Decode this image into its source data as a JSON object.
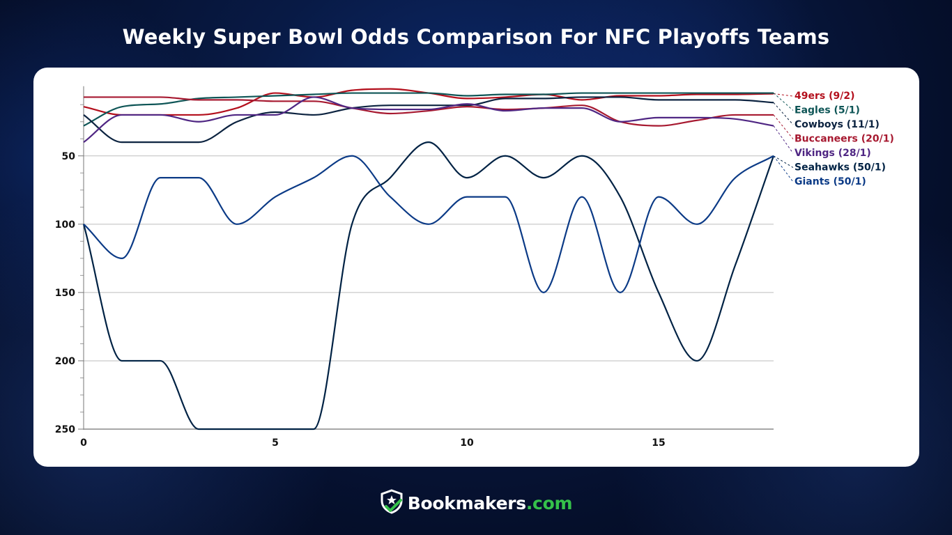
{
  "title": "Weekly Super Bowl Odds Comparison For NFC Playoffs Teams",
  "brand": {
    "name": "Bookmakers",
    "tld": ".com",
    "icon": "shield-star-check-icon",
    "accent": "#35c14a"
  },
  "chart_data": {
    "type": "line",
    "title": "Weekly Super Bowl Odds Comparison For NFC Playoffs Teams",
    "xlabel": "",
    "ylabel": "",
    "x": [
      0,
      1,
      2,
      3,
      4,
      5,
      6,
      7,
      8,
      9,
      10,
      11,
      12,
      13,
      14,
      15,
      16,
      17,
      18
    ],
    "xlim": [
      0,
      18
    ],
    "xticks": [
      0,
      5,
      10,
      15
    ],
    "ylim": [
      0,
      250
    ],
    "y_inverted": true,
    "yticks": [
      50,
      100,
      150,
      200,
      250
    ],
    "y_minor_step": 12.5,
    "grid": true,
    "legend_placement": "right",
    "series": [
      {
        "name": "49ers",
        "label": "49ers (9/2)",
        "color": "#b30f1c",
        "values": [
          14,
          20,
          20,
          20,
          15,
          4,
          7,
          2,
          1,
          4,
          8,
          7,
          5,
          9,
          6,
          6,
          5,
          5,
          4.5
        ]
      },
      {
        "name": "Eagles",
        "label": "Eagles (5/1)",
        "color": "#0e5556",
        "values": [
          28,
          14,
          12,
          8,
          7,
          6,
          5,
          4,
          4,
          4,
          6,
          5,
          5,
          4,
          4,
          4,
          4,
          4,
          4
        ]
      },
      {
        "name": "Cowboys",
        "label": "Cowboys (11/1)",
        "color": "#0c2340",
        "values": [
          20,
          40,
          40,
          40,
          25,
          18,
          20,
          15,
          13,
          13,
          13,
          8,
          8,
          7,
          7,
          9,
          9,
          9,
          11
        ]
      },
      {
        "name": "Buccaneers",
        "label": "Buccaneers (20/1)",
        "color": "#a71930",
        "values": [
          7,
          7,
          7,
          9,
          9,
          10,
          10,
          15,
          19,
          17,
          14,
          16,
          15,
          13,
          25,
          28,
          24,
          20,
          20
        ]
      },
      {
        "name": "Vikings",
        "label": "Vikings (28/1)",
        "color": "#4f2683",
        "values": [
          40,
          20,
          20,
          25,
          20,
          20,
          7,
          15,
          16,
          16,
          12,
          17,
          15,
          15,
          25,
          22,
          22,
          23,
          28
        ]
      },
      {
        "name": "Seahawks",
        "label": "Seahawks (50/1)",
        "color": "#002244",
        "values": [
          100,
          200,
          200,
          250,
          250,
          250,
          250,
          100,
          66,
          40,
          66,
          50,
          66,
          50,
          80,
          150,
          200,
          130,
          50
        ]
      },
      {
        "name": "Giants",
        "label": "Giants (50/1)",
        "color": "#0b3a86",
        "values": [
          100,
          125,
          66,
          66,
          100,
          80,
          66,
          50,
          80,
          100,
          80,
          80,
          150,
          80,
          150,
          80,
          100,
          66,
          50
        ]
      }
    ]
  }
}
